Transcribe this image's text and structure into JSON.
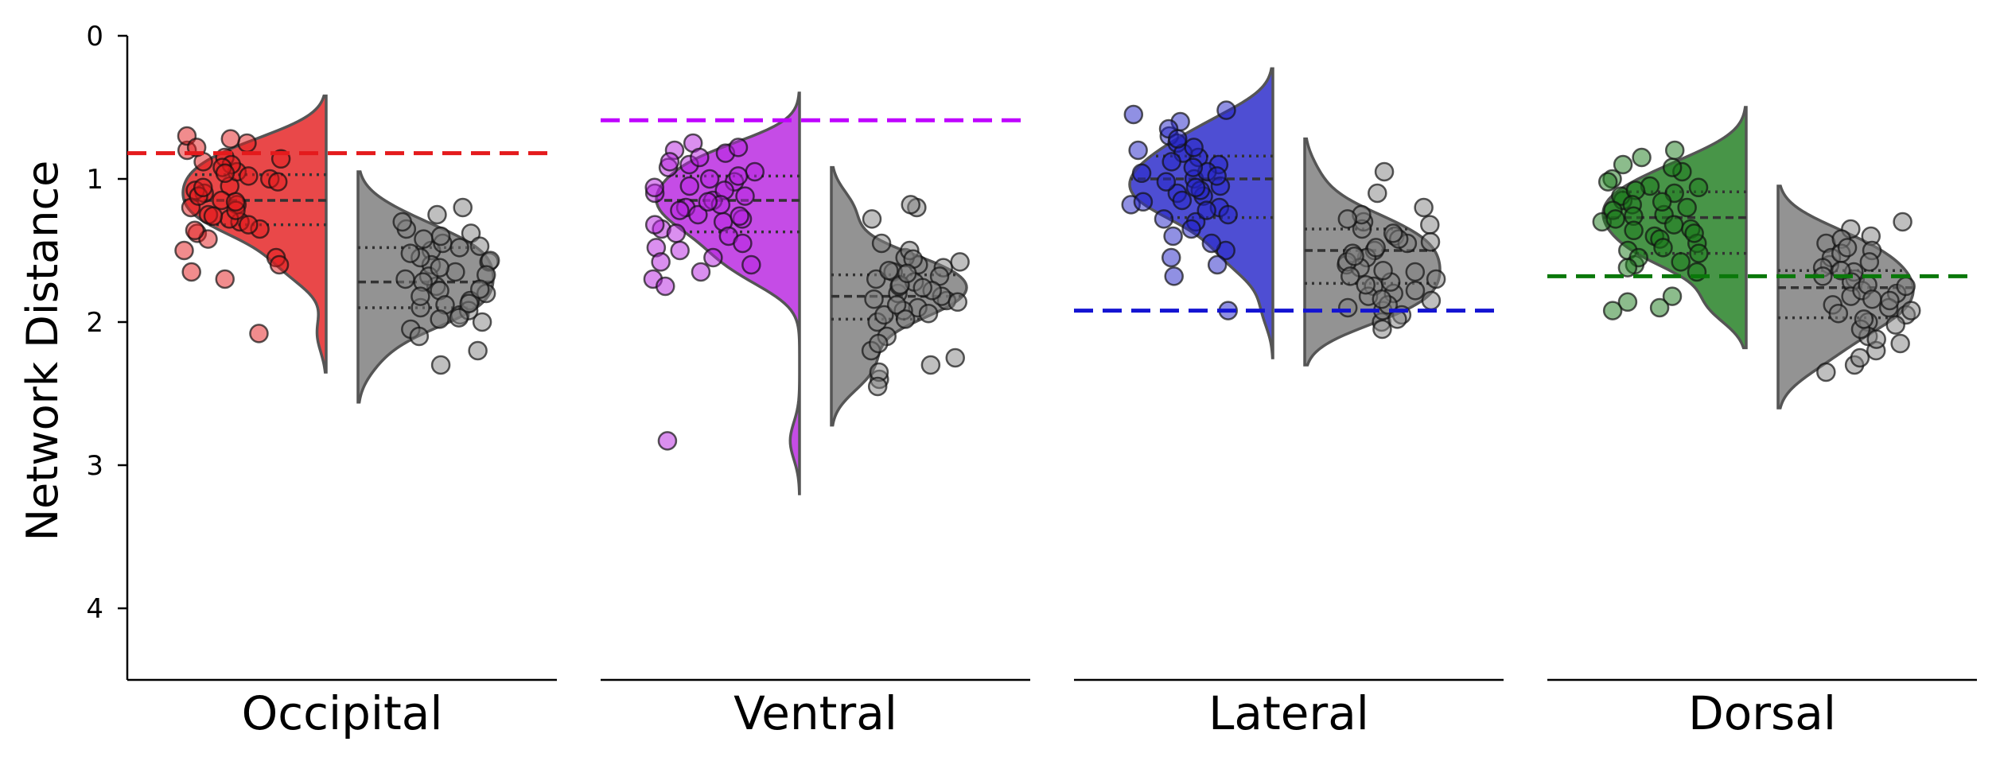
{
  "chart_data": {
    "type": "violin",
    "ylabel": "Network Distance",
    "y_ticks": [
      0,
      1,
      2,
      3,
      4
    ],
    "ylim": [
      4.5,
      0
    ],
    "y_inverted": true,
    "panels": [
      {
        "name": "Occipital",
        "color": "#e41a1c",
        "line_color": "#e41a1c",
        "reference_line": 0.82,
        "colored": {
          "points": [
            1.05,
            0.95,
            1.2,
            1.1,
            0.85,
            0.9,
            0.8,
            1.0,
            1.3,
            1.15,
            1.25,
            1.35,
            0.75,
            0.7,
            0.72,
            0.88,
            0.98,
            1.08,
            1.18,
            1.28,
            1.38,
            1.5,
            1.55,
            1.6,
            1.65,
            1.7,
            1.02,
            1.12,
            0.92,
            1.22,
            1.32,
            1.42,
            0.78,
            0.86,
            0.96,
            1.06,
            1.16,
            1.26,
            1.36,
            2.08
          ],
          "median": 1.15,
          "q1": 0.97,
          "q3": 1.32,
          "min": 0.42,
          "max": 2.35
        },
        "gray": {
          "points": [
            1.5,
            1.6,
            1.7,
            1.8,
            1.9,
            2.0,
            1.45,
            1.55,
            1.65,
            1.75,
            1.85,
            1.95,
            2.05,
            2.1,
            1.4,
            1.35,
            1.3,
            1.25,
            1.2,
            1.48,
            1.58,
            1.68,
            1.78,
            1.88,
            1.98,
            2.2,
            2.3,
            1.62,
            1.72,
            1.82,
            1.92,
            1.52,
            1.42,
            1.38,
            1.47,
            1.57,
            1.67,
            1.77,
            1.87,
            1.97
          ],
          "median": 1.72,
          "q1": 1.48,
          "q3": 1.9,
          "min": 0.95,
          "max": 2.56
        }
      },
      {
        "name": "Ventral",
        "color": "#b61fe0",
        "line_color": "#bf00ff",
        "reference_line": 0.59,
        "colored": {
          "points": [
            1.0,
            1.1,
            1.2,
            0.9,
            0.8,
            0.75,
            1.3,
            1.4,
            1.5,
            1.6,
            1.7,
            1.05,
            1.15,
            1.25,
            1.35,
            0.95,
            0.85,
            1.45,
            1.55,
            1.65,
            1.75,
            1.02,
            1.12,
            1.22,
            1.32,
            0.92,
            0.82,
            1.08,
            1.18,
            1.28,
            1.38,
            0.98,
            0.88,
            1.48,
            1.58,
            1.06,
            1.16,
            0.78,
            1.26,
            2.83
          ],
          "median": 1.15,
          "q1": 0.98,
          "q3": 1.37,
          "min": 0.4,
          "max": 3.2
        },
        "gray": {
          "points": [
            1.6,
            1.7,
            1.8,
            1.9,
            2.0,
            1.55,
            1.65,
            1.75,
            1.85,
            1.95,
            2.1,
            2.2,
            2.3,
            2.4,
            1.5,
            1.45,
            1.2,
            1.18,
            1.28,
            1.62,
            1.72,
            1.82,
            1.92,
            1.58,
            1.68,
            1.78,
            1.88,
            1.98,
            2.15,
            2.25,
            2.35,
            2.45,
            1.64,
            1.74,
            1.84,
            1.94,
            1.56,
            1.66,
            1.76,
            1.86
          ],
          "median": 1.82,
          "q1": 1.67,
          "q3": 1.98,
          "min": 0.92,
          "max": 2.72
        }
      },
      {
        "name": "Lateral",
        "color": "#2222c8",
        "line_color": "#1414d2",
        "reference_line": 1.92,
        "colored": {
          "points": [
            0.6,
            0.7,
            0.8,
            0.9,
            1.0,
            1.1,
            1.2,
            1.3,
            1.4,
            1.5,
            1.6,
            0.65,
            0.75,
            0.85,
            0.95,
            1.05,
            1.15,
            1.25,
            1.35,
            1.45,
            1.55,
            0.55,
            0.52,
            0.82,
            0.92,
            1.02,
            1.12,
            1.22,
            0.72,
            0.88,
            0.98,
            1.08,
            1.18,
            1.28,
            1.68,
            1.92,
            0.78,
            0.96,
            1.06,
            1.16
          ],
          "median": 1.0,
          "q1": 0.84,
          "q3": 1.27,
          "min": 0.23,
          "max": 2.25
        },
        "gray": {
          "points": [
            1.3,
            1.4,
            1.5,
            1.6,
            1.7,
            1.8,
            1.9,
            2.0,
            1.35,
            1.45,
            1.55,
            1.65,
            1.75,
            1.85,
            1.95,
            2.05,
            1.2,
            1.25,
            1.1,
            0.95,
            1.32,
            1.42,
            1.52,
            1.62,
            1.72,
            1.82,
            1.92,
            1.38,
            1.48,
            1.58,
            1.68,
            1.78,
            1.88,
            1.98,
            1.44,
            1.54,
            1.64,
            1.74,
            1.84,
            1.28
          ],
          "median": 1.5,
          "q1": 1.35,
          "q3": 1.73,
          "min": 0.72,
          "max": 2.3
        }
      },
      {
        "name": "Dorsal",
        "color": "#1a7a1a",
        "line_color": "#0a780a",
        "reference_line": 1.68,
        "colored": {
          "points": [
            1.0,
            1.1,
            1.2,
            1.3,
            1.4,
            1.5,
            1.6,
            0.9,
            0.8,
            1.05,
            1.15,
            1.25,
            1.35,
            1.45,
            1.55,
            1.65,
            0.95,
            0.85,
            1.02,
            1.12,
            1.22,
            1.32,
            1.42,
            1.52,
            1.62,
            1.08,
            1.18,
            1.28,
            1.38,
            1.48,
            1.58,
            1.82,
            1.86,
            1.9,
            1.92,
            0.92,
            1.06,
            1.16,
            1.26,
            1.36
          ],
          "median": 1.27,
          "q1": 1.09,
          "q3": 1.52,
          "min": 0.5,
          "max": 2.18
        },
        "gray": {
          "points": [
            1.4,
            1.5,
            1.6,
            1.7,
            1.8,
            1.9,
            2.0,
            2.1,
            2.2,
            2.3,
            1.45,
            1.55,
            1.65,
            1.75,
            1.85,
            1.95,
            2.05,
            2.15,
            2.25,
            2.35,
            1.3,
            1.35,
            1.42,
            1.52,
            1.62,
            1.72,
            1.82,
            1.92,
            2.02,
            2.12,
            1.58,
            1.68,
            1.78,
            1.88,
            1.98,
            1.48,
            1.64,
            1.74,
            1.84,
            1.94
          ],
          "median": 1.76,
          "q1": 1.64,
          "q3": 1.97,
          "min": 1.05,
          "max": 2.6
        }
      }
    ]
  }
}
